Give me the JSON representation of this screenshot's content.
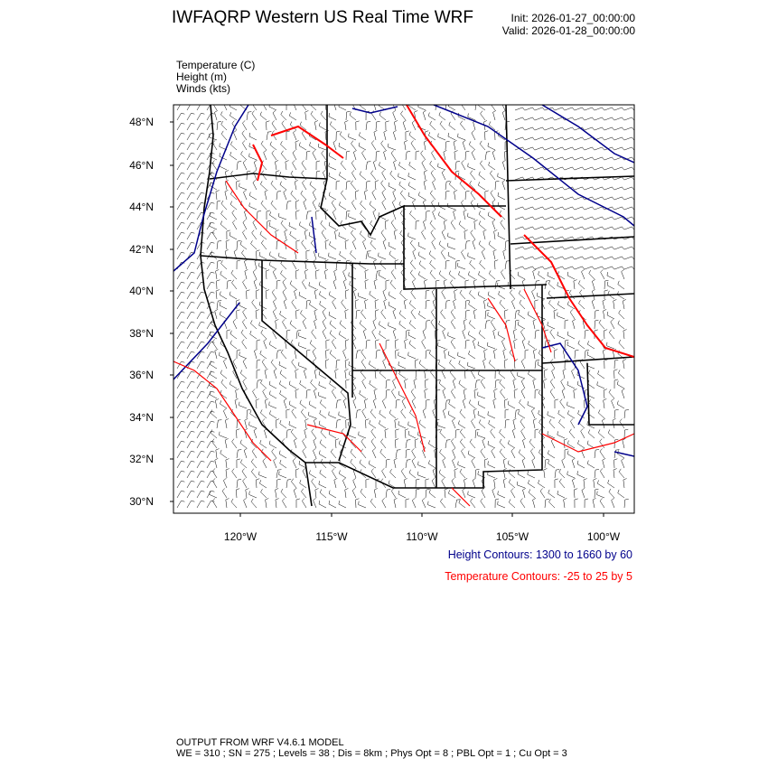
{
  "header": {
    "title": "IWFAQRP Western US Real Time WRF",
    "init": "Init: 2026-01-27_00:00:00",
    "valid": "Valid: 2026-01-28_00:00:00"
  },
  "fields": [
    "Temperature   (C)",
    "Height   (m)",
    "Winds   (kts)"
  ],
  "map": {
    "lat_labels": [
      "48°N",
      "46°N",
      "44°N",
      "42°N",
      "40°N",
      "38°N",
      "36°N",
      "34°N",
      "32°N",
      "30°N"
    ],
    "lon_labels": [
      "120°W",
      "115°W",
      "110°W",
      "105°W",
      "100°W"
    ],
    "colors": {
      "height": "#00008b",
      "temperature": "#ff0000",
      "borders": "#000000"
    }
  },
  "legend": {
    "height_contours": "Height Contours: 1300 to 1660 by 60",
    "temperature_contours": "Temperature Contours: -25 to 25 by 5"
  },
  "footer": {
    "line1": "OUTPUT FROM WRF V4.6.1 MODEL",
    "line2": "WE = 310 ; SN = 275 ; Levels = 38 ; Dis = 8km ; Phys Opt = 8 ; PBL Opt = 1 ; Cu Opt = 3"
  }
}
